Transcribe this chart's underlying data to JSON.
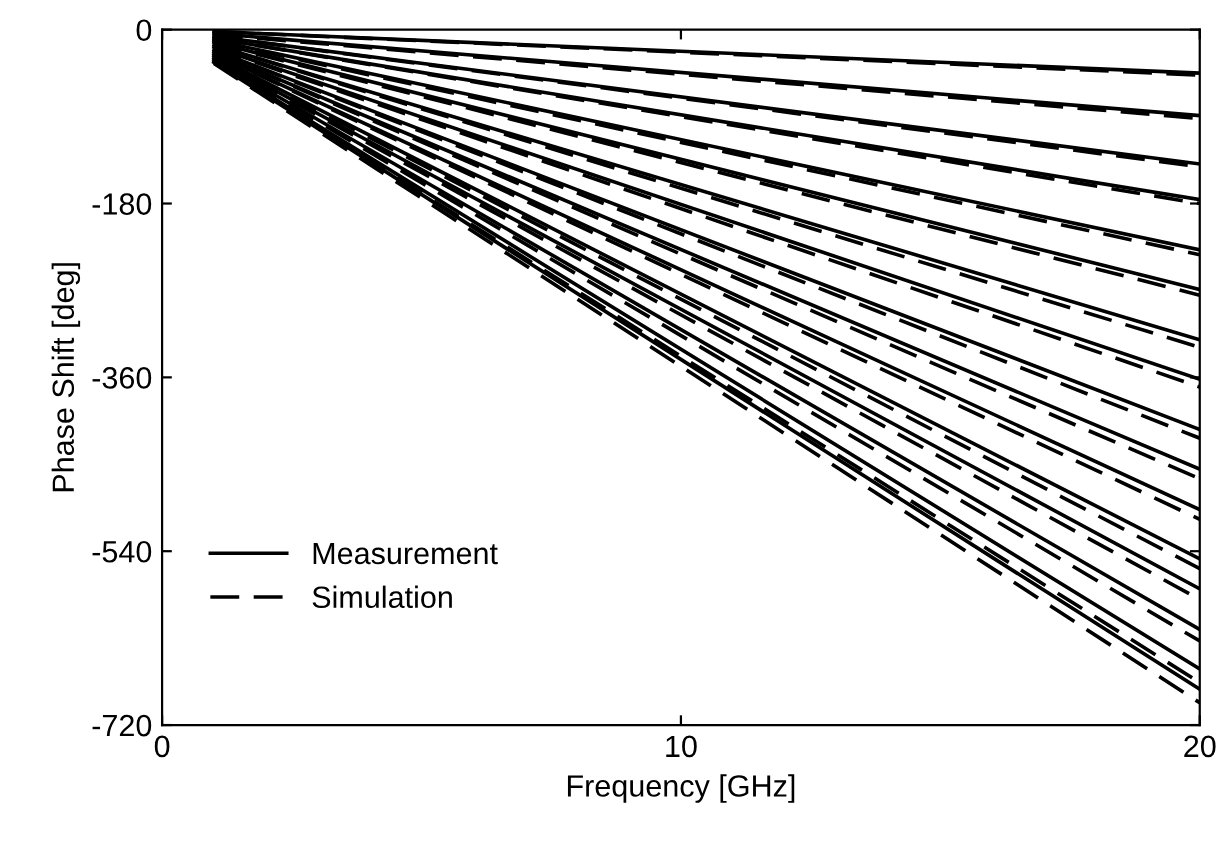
{
  "chart_data": {
    "type": "line",
    "xlabel": "Frequency [GHz]",
    "ylabel": "Phase Shift [deg]",
    "xlim": [
      0,
      20
    ],
    "ylim": [
      -720,
      0
    ],
    "xticks": [
      0,
      10,
      20
    ],
    "yticks": [
      0,
      -180,
      -360,
      -540,
      -720
    ],
    "grid": false,
    "legend": "bottom left",
    "marker": "none",
    "x": [
      1,
      20
    ],
    "series": [
      {
        "name": "Measurement",
        "color": "#000000",
        "line_style": "solid",
        "values": [
          -2,
          -45
        ]
      },
      {
        "color": "#000000",
        "line_style": "solid",
        "values": [
          -4,
          -89
        ]
      },
      {
        "color": "#000000",
        "line_style": "solid",
        "values": [
          -7,
          -139
        ]
      },
      {
        "color": "#000000",
        "line_style": "solid",
        "values": [
          -9,
          -176
        ]
      },
      {
        "color": "#000000",
        "line_style": "solid",
        "values": [
          -11,
          -228
        ]
      },
      {
        "color": "#000000",
        "line_style": "solid",
        "values": [
          -13,
          -269
        ]
      },
      {
        "color": "#000000",
        "line_style": "solid",
        "values": [
          -16,
          -321
        ]
      },
      {
        "color": "#000000",
        "line_style": "solid",
        "values": [
          -18,
          -362
        ]
      },
      {
        "color": "#000000",
        "line_style": "solid",
        "values": [
          -21,
          -414
        ]
      },
      {
        "color": "#000000",
        "line_style": "solid",
        "values": [
          -23,
          -455
        ]
      },
      {
        "color": "#000000",
        "line_style": "solid",
        "values": [
          -25,
          -497
        ]
      },
      {
        "color": "#000000",
        "line_style": "solid",
        "values": [
          -27,
          -548
        ]
      },
      {
        "color": "#000000",
        "line_style": "solid",
        "values": [
          -29,
          -579
        ]
      },
      {
        "color": "#000000",
        "line_style": "solid",
        "values": [
          -31,
          -621
        ]
      },
      {
        "color": "#000000",
        "line_style": "solid",
        "values": [
          -33,
          -662
        ]
      },
      {
        "color": "#000000",
        "line_style": "solid",
        "values": [
          -34,
          -683
        ]
      },
      {
        "name": "Simulation",
        "color": "#000000",
        "line_style": "dashed",
        "values": [
          -2,
          -47
        ]
      },
      {
        "color": "#000000",
        "line_style": "dashed",
        "values": [
          -5,
          -92
        ]
      },
      {
        "color": "#000000",
        "line_style": "dashed",
        "values": [
          -7,
          -142
        ]
      },
      {
        "color": "#000000",
        "line_style": "dashed",
        "values": [
          -9,
          -180
        ]
      },
      {
        "color": "#000000",
        "line_style": "dashed",
        "values": [
          -12,
          -233
        ]
      },
      {
        "color": "#000000",
        "line_style": "dashed",
        "values": [
          -14,
          -275
        ]
      },
      {
        "color": "#000000",
        "line_style": "dashed",
        "values": [
          -16,
          -329
        ]
      },
      {
        "color": "#000000",
        "line_style": "dashed",
        "values": [
          -19,
          -370
        ]
      },
      {
        "color": "#000000",
        "line_style": "dashed",
        "values": [
          -21,
          -423
        ]
      },
      {
        "color": "#000000",
        "line_style": "dashed",
        "values": [
          -23,
          -465
        ]
      },
      {
        "color": "#000000",
        "line_style": "dashed",
        "values": [
          -25,
          -507
        ]
      },
      {
        "color": "#000000",
        "line_style": "dashed",
        "values": [
          -28,
          -558
        ]
      },
      {
        "color": "#000000",
        "line_style": "dashed",
        "values": [
          -30,
          -590
        ]
      },
      {
        "color": "#000000",
        "line_style": "dashed",
        "values": [
          -32,
          -633
        ]
      },
      {
        "color": "#000000",
        "line_style": "dashed",
        "values": [
          -34,
          -676
        ]
      },
      {
        "color": "#000000",
        "line_style": "dashed",
        "values": [
          -35,
          -697
        ]
      }
    ]
  }
}
